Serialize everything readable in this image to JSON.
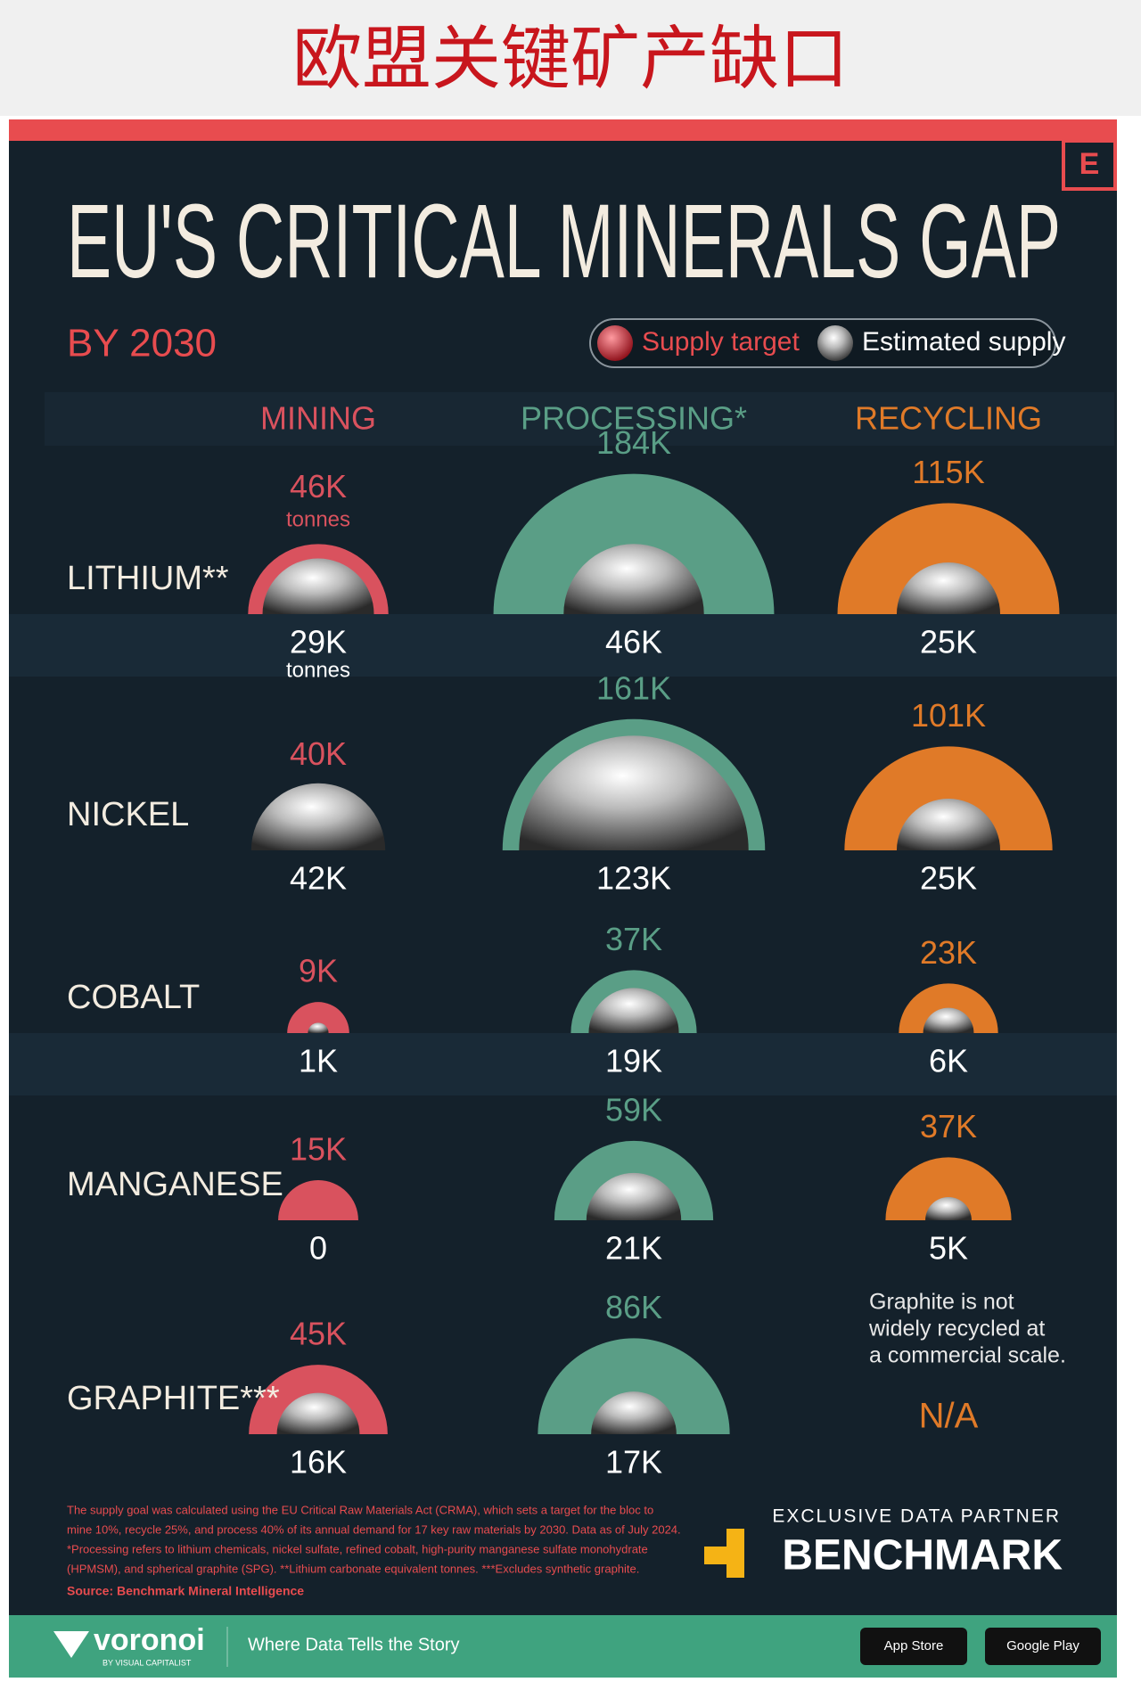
{
  "header": {
    "title": "欧盟关键矿产缺口"
  },
  "logo": "E",
  "chart_data": {
    "type": "semicircle-matrix",
    "title": "EU'S CRITICAL MINERALS GAP",
    "subtitle": "BY 2030",
    "target_name": "Supply target",
    "supply_name": "Estimated supply",
    "unit": "tonnes",
    "categories": [
      "LITHIUM**",
      "NICKEL",
      "COBALT",
      "MANGANESE",
      "GRAPHITE***"
    ],
    "series": [
      {
        "name": "MINING",
        "color": "#d9525e",
        "values": [
          46000,
          40000,
          9000,
          15000,
          45000
        ],
        "value_labels": [
          "46K",
          "40K",
          "9K",
          "15K",
          "45K"
        ],
        "supply": [
          29000,
          42000,
          1000,
          0,
          16000
        ],
        "supply_labels": [
          "29K",
          "42K",
          "1K",
          "0",
          "16K"
        ]
      },
      {
        "name": "PROCESSING*",
        "color": "#5a9e86",
        "values": [
          184000,
          161000,
          37000,
          59000,
          86000
        ],
        "value_labels": [
          "184K",
          "161K",
          "37K",
          "59K",
          "86K"
        ],
        "supply": [
          46000,
          123000,
          19000,
          21000,
          17000
        ],
        "supply_labels": [
          "46K",
          "123K",
          "19K",
          "21K",
          "17K"
        ]
      },
      {
        "name": "RECYCLING",
        "color": "#e07a28",
        "values": [
          115000,
          101000,
          23000,
          37000,
          null
        ],
        "value_labels": [
          "115K",
          "101K",
          "23K",
          "37K",
          "N/A"
        ],
        "supply": [
          25000,
          25000,
          6000,
          5000,
          null
        ],
        "supply_labels": [
          "25K",
          "25K",
          "6K",
          "5K",
          null
        ]
      }
    ],
    "note": [
      "Graphite is not",
      "widely recycled at",
      "a commercial scale."
    ],
    "footnotes": [
      "The supply goal was calculated using the EU Critical Raw Materials Act (CRMA), which sets a target for the bloc to",
      "mine 10%, recycle 25%, and process 40% of its annual demand for 17 key raw materials by 2030. Data as of July 2024.",
      "*Processing refers to lithium chemicals, nickel sulfate, refined cobalt, high-purity manganese sulfate monohydrate",
      "(HPMSM), and spherical graphite (SPG). **Lithium carbonate equivalent tonnes. ***Excludes synthetic graphite."
    ],
    "source": "Source: Benchmark Mineral Intelligence"
  },
  "partner": {
    "label": "EXCLUSIVE DATA PARTNER",
    "name": "BENCHMARK"
  },
  "footer": {
    "brand": "voronoi",
    "byline": "BY VISUAL CAPITALIST",
    "tagline": "Where Data Tells the Story",
    "app_store": "App Store",
    "google_play": "Google Play"
  }
}
